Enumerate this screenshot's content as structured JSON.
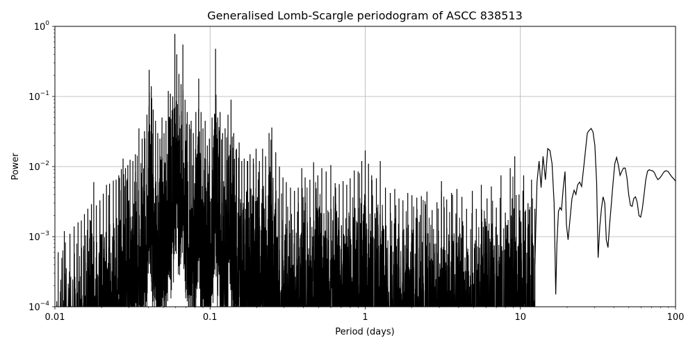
{
  "chart_data": {
    "type": "line",
    "title": "Generalised Lomb-Scargle periodogram of ASCC 838513",
    "xlabel": "Period (days)",
    "ylabel": "Power",
    "xscale": "log",
    "yscale": "log",
    "xlim": [
      0.01,
      100
    ],
    "ylim": [
      0.0001,
      1
    ],
    "grid": true,
    "line_color": "#000000",
    "x_ticks": [
      {
        "value": 0.01,
        "label": "0.01"
      },
      {
        "value": 0.1,
        "label": "0.1"
      },
      {
        "value": 1,
        "label": "1"
      },
      {
        "value": 10,
        "label": "10"
      },
      {
        "value": 100,
        "label": "100"
      }
    ],
    "y_ticks": [
      {
        "value": 0.0001,
        "base": "10",
        "exp": "−4"
      },
      {
        "value": 0.001,
        "base": "10",
        "exp": "−3"
      },
      {
        "value": 0.01,
        "base": "10",
        "exp": "−2"
      },
      {
        "value": 0.1,
        "base": "10",
        "exp": "−1"
      },
      {
        "value": 1,
        "base": "10",
        "exp": "0"
      }
    ],
    "series": [
      {
        "peaks": [
          [
            0.0105,
            0.0006
          ],
          [
            0.0115,
            0.0012
          ],
          [
            0.0125,
            0.0011
          ],
          [
            0.0133,
            0.0014
          ],
          [
            0.0141,
            0.0016
          ],
          [
            0.0148,
            0.0017
          ],
          [
            0.0155,
            0.0021
          ],
          [
            0.0163,
            0.0025
          ],
          [
            0.0172,
            0.0029
          ],
          [
            0.0178,
            0.006
          ],
          [
            0.0185,
            0.0028
          ],
          [
            0.0195,
            0.0033
          ],
          [
            0.0205,
            0.0041
          ],
          [
            0.0215,
            0.0055
          ],
          [
            0.0225,
            0.0057
          ],
          [
            0.0238,
            0.0063
          ],
          [
            0.0248,
            0.0065
          ],
          [
            0.0258,
            0.0075
          ],
          [
            0.0268,
            0.0092
          ],
          [
            0.0275,
            0.013
          ],
          [
            0.0285,
            0.0095
          ],
          [
            0.0295,
            0.0105
          ],
          [
            0.0305,
            0.0125
          ],
          [
            0.0318,
            0.012
          ],
          [
            0.033,
            0.015
          ],
          [
            0.0348,
            0.035
          ],
          [
            0.0365,
            0.025
          ],
          [
            0.0378,
            0.032
          ],
          [
            0.0392,
            0.055
          ],
          [
            0.0405,
            0.24
          ],
          [
            0.0418,
            0.14
          ],
          [
            0.043,
            0.065
          ],
          [
            0.0445,
            0.045
          ],
          [
            0.046,
            0.03
          ],
          [
            0.0475,
            0.025
          ],
          [
            0.049,
            0.05
          ],
          [
            0.0505,
            0.03
          ],
          [
            0.052,
            0.045
          ],
          [
            0.0538,
            0.12
          ],
          [
            0.0555,
            0.11
          ],
          [
            0.0575,
            0.1
          ],
          [
            0.0593,
            0.78
          ],
          [
            0.061,
            0.4
          ],
          [
            0.063,
            0.21
          ],
          [
            0.065,
            0.15
          ],
          [
            0.0668,
            0.55
          ],
          [
            0.069,
            0.09
          ],
          [
            0.0712,
            0.06
          ],
          [
            0.0735,
            0.04
          ],
          [
            0.0755,
            0.045
          ],
          [
            0.078,
            0.03
          ],
          [
            0.081,
            0.06
          ],
          [
            0.0845,
            0.18
          ],
          [
            0.0875,
            0.06
          ],
          [
            0.09,
            0.035
          ],
          [
            0.093,
            0.045
          ],
          [
            0.096,
            0.02
          ],
          [
            0.099,
            0.025
          ],
          [
            0.103,
            0.05
          ],
          [
            0.1085,
            0.48
          ],
          [
            0.112,
            0.05
          ],
          [
            0.116,
            0.06
          ],
          [
            0.1205,
            0.03
          ],
          [
            0.125,
            0.035
          ],
          [
            0.1305,
            0.055
          ],
          [
            0.1365,
            0.09
          ],
          [
            0.142,
            0.03
          ],
          [
            0.148,
            0.018
          ],
          [
            0.154,
            0.022
          ],
          [
            0.16,
            0.012
          ],
          [
            0.166,
            0.013
          ],
          [
            0.174,
            0.012
          ],
          [
            0.181,
            0.015
          ],
          [
            0.19,
            0.013
          ],
          [
            0.198,
            0.018
          ],
          [
            0.208,
            0.012
          ],
          [
            0.218,
            0.018
          ],
          [
            0.228,
            0.014
          ],
          [
            0.24,
            0.03
          ],
          [
            0.25,
            0.036
          ],
          [
            0.265,
            0.016
          ],
          [
            0.28,
            0.01
          ],
          [
            0.295,
            0.007
          ],
          [
            0.31,
            0.006
          ],
          [
            0.33,
            0.005
          ],
          [
            0.35,
            0.0045
          ],
          [
            0.37,
            0.005
          ],
          [
            0.39,
            0.0095
          ],
          [
            0.41,
            0.007
          ],
          [
            0.44,
            0.0065
          ],
          [
            0.465,
            0.0115
          ],
          [
            0.495,
            0.0075
          ],
          [
            0.525,
            0.0095
          ],
          [
            0.56,
            0.0085
          ],
          [
            0.6,
            0.0105
          ],
          [
            0.64,
            0.0058
          ],
          [
            0.68,
            0.0056
          ],
          [
            0.72,
            0.0062
          ],
          [
            0.76,
            0.0055
          ],
          [
            0.8,
            0.0068
          ],
          [
            0.85,
            0.0088
          ],
          [
            0.9,
            0.0085
          ],
          [
            0.95,
            0.012
          ],
          [
            1.0,
            0.017
          ],
          [
            1.05,
            0.011
          ],
          [
            1.1,
            0.0075
          ],
          [
            1.18,
            0.0068
          ],
          [
            1.25,
            0.012
          ],
          [
            1.35,
            0.005
          ],
          [
            1.45,
            0.0042
          ],
          [
            1.55,
            0.0048
          ],
          [
            1.65,
            0.0035
          ],
          [
            1.75,
            0.0033
          ],
          [
            1.88,
            0.0042
          ],
          [
            2.0,
            0.0039
          ],
          [
            2.15,
            0.0036
          ],
          [
            2.3,
            0.0038
          ],
          [
            2.5,
            0.0044
          ],
          [
            2.7,
            0.0024
          ],
          [
            2.9,
            0.0031
          ],
          [
            3.1,
            0.0062
          ],
          [
            3.35,
            0.0034
          ],
          [
            3.6,
            0.0042
          ],
          [
            3.9,
            0.0048
          ],
          [
            4.2,
            0.0037
          ],
          [
            4.5,
            0.0025
          ],
          [
            4.9,
            0.0045
          ],
          [
            5.2,
            0.0025
          ],
          [
            5.6,
            0.0055
          ],
          [
            6.1,
            0.0035
          ],
          [
            6.5,
            0.0052
          ],
          [
            7.0,
            0.0026
          ],
          [
            7.5,
            0.0075
          ],
          [
            8.0,
            0.0022
          ],
          [
            8.6,
            0.0095
          ],
          [
            9.2,
            0.014
          ],
          [
            9.8,
            0.004
          ],
          [
            10.5,
            0.0075
          ],
          [
            11.2,
            0.003
          ],
          [
            11.8,
            0.0065
          ],
          [
            12.4,
            0.0025
          ]
        ],
        "curve": [
          [
            12.4,
            0.0004
          ],
          [
            12.8,
            0.006
          ],
          [
            13.2,
            0.012
          ],
          [
            13.6,
            0.005
          ],
          [
            14.0,
            0.014
          ],
          [
            14.5,
            0.0065
          ],
          [
            15.0,
            0.018
          ],
          [
            15.5,
            0.017
          ],
          [
            16.0,
            0.011
          ],
          [
            16.5,
            0.003
          ],
          [
            16.9,
            0.00015
          ],
          [
            17.2,
            0.0008
          ],
          [
            17.6,
            0.0023
          ],
          [
            18.0,
            0.0026
          ],
          [
            18.4,
            0.0024
          ],
          [
            18.9,
            0.005
          ],
          [
            19.4,
            0.0085
          ],
          [
            19.8,
            0.0015
          ],
          [
            20.3,
            0.0009
          ],
          [
            20.9,
            0.0018
          ],
          [
            21.5,
            0.0035
          ],
          [
            22.2,
            0.0046
          ],
          [
            22.8,
            0.004
          ],
          [
            23.4,
            0.0055
          ],
          [
            24.1,
            0.006
          ],
          [
            24.8,
            0.0052
          ],
          [
            25.5,
            0.009
          ],
          [
            26.2,
            0.016
          ],
          [
            27.0,
            0.03
          ],
          [
            27.8,
            0.033
          ],
          [
            28.6,
            0.035
          ],
          [
            29.4,
            0.031
          ],
          [
            30.2,
            0.02
          ],
          [
            31.0,
            0.006
          ],
          [
            31.7,
            0.0005
          ],
          [
            32.5,
            0.0014
          ],
          [
            33.3,
            0.0025
          ],
          [
            34.1,
            0.0037
          ],
          [
            35.0,
            0.003
          ],
          [
            35.8,
            0.0009
          ],
          [
            36.7,
            0.0007
          ],
          [
            37.6,
            0.0015
          ],
          [
            38.6,
            0.003
          ],
          [
            39.6,
            0.006
          ],
          [
            40.6,
            0.011
          ],
          [
            41.7,
            0.0135
          ],
          [
            42.8,
            0.0105
          ],
          [
            43.9,
            0.0075
          ],
          [
            45.0,
            0.0085
          ],
          [
            46.2,
            0.0095
          ],
          [
            47.4,
            0.0095
          ],
          [
            48.6,
            0.007
          ],
          [
            49.9,
            0.004
          ],
          [
            51.2,
            0.0028
          ],
          [
            52.5,
            0.0027
          ],
          [
            53.8,
            0.0035
          ],
          [
            55.2,
            0.0037
          ],
          [
            56.6,
            0.0031
          ],
          [
            58.1,
            0.002
          ],
          [
            59.6,
            0.0019
          ],
          [
            61.1,
            0.0025
          ],
          [
            62.7,
            0.004
          ],
          [
            64.3,
            0.0065
          ],
          [
            66.0,
            0.0086
          ],
          [
            67.7,
            0.009
          ],
          [
            69.4,
            0.0088
          ],
          [
            71.2,
            0.0087
          ],
          [
            73.0,
            0.0082
          ],
          [
            74.9,
            0.0072
          ],
          [
            76.9,
            0.0065
          ],
          [
            78.9,
            0.0068
          ],
          [
            80.9,
            0.0073
          ],
          [
            83.0,
            0.008
          ],
          [
            85.1,
            0.0086
          ],
          [
            87.3,
            0.0087
          ],
          [
            89.6,
            0.0085
          ],
          [
            91.9,
            0.0078
          ],
          [
            94.3,
            0.0072
          ],
          [
            96.7,
            0.0068
          ],
          [
            100.0,
            0.0062
          ]
        ]
      }
    ]
  }
}
